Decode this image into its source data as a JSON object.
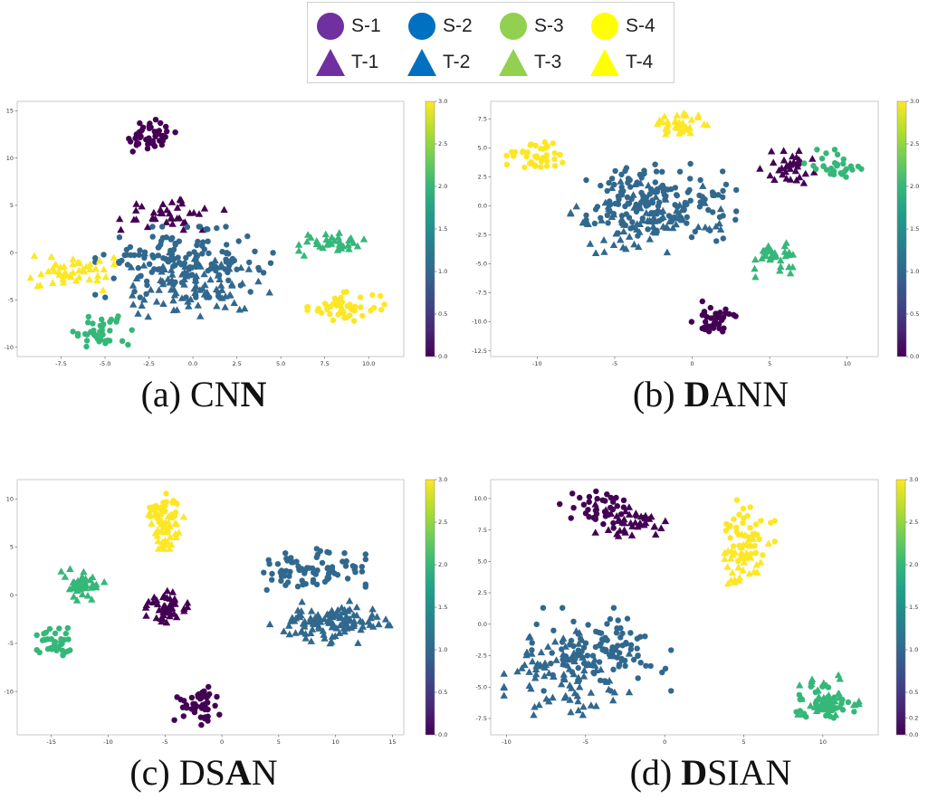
{
  "legend": {
    "entries": [
      {
        "label": "S-1",
        "shape": "circle",
        "color": "#7030a0"
      },
      {
        "label": "S-2",
        "shape": "circle",
        "color": "#0070c0"
      },
      {
        "label": "S-3",
        "shape": "circle",
        "color": "#92d050"
      },
      {
        "label": "S-4",
        "shape": "circle",
        "color": "#ffff00"
      },
      {
        "label": "T-1",
        "shape": "triangle",
        "color": "#7030a0"
      },
      {
        "label": "T-2",
        "shape": "triangle",
        "color": "#0070c0"
      },
      {
        "label": "T-3",
        "shape": "triangle",
        "color": "#92d050"
      },
      {
        "label": "T-4",
        "shape": "triangle",
        "color": "#ffff00"
      }
    ]
  },
  "palette": {
    "class_colors": [
      "#440154",
      "#31688e",
      "#35b779",
      "#fde725"
    ],
    "colorbar_stops": [
      "#440154",
      "#482878",
      "#3e4a89",
      "#31688e",
      "#26828e",
      "#1f9e89",
      "#35b779",
      "#6ece58",
      "#b5de2b",
      "#fde725"
    ]
  },
  "chart_data": [
    {
      "type": "scatter",
      "caption": {
        "pre": "(a) CN",
        "bold": "N",
        "post": ""
      },
      "xlim": [
        -10,
        12
      ],
      "ylim": [
        -11,
        16
      ],
      "xticks": [
        "-7.5",
        "-5.0",
        "-2.5",
        "0.0",
        "2.5",
        "5.0",
        "7.5",
        "10.0"
      ],
      "xtick_values": [
        -7.5,
        -5.0,
        -2.5,
        0.0,
        2.5,
        5.0,
        7.5,
        10.0
      ],
      "yticks": [
        "-10",
        "-5",
        "0",
        "5",
        "10",
        "15"
      ],
      "ytick_values": [
        -10,
        -5,
        0,
        5,
        10,
        15
      ],
      "colorbar": {
        "ticks": [
          "0.0",
          "0.5",
          "1.0",
          "1.5",
          "2.0",
          "2.5",
          "3.0"
        ],
        "range": [
          0,
          3
        ]
      },
      "clusters": [
        {
          "label": "S-1",
          "cls": 0,
          "marker": "circle",
          "cx": -2.5,
          "cy": 12.2,
          "sx": 0.8,
          "sy": 0.85,
          "n": 45
        },
        {
          "label": "T-1",
          "cls": 0,
          "marker": "triangle",
          "cx": -1.3,
          "cy": 4.4,
          "sx": 1.4,
          "sy": 0.9,
          "n": 38
        },
        {
          "label": "S-2",
          "cls": 1,
          "marker": "circle",
          "cx": -0.5,
          "cy": -1.0,
          "sx": 2.3,
          "sy": 1.7,
          "n": 150
        },
        {
          "label": "T-2",
          "cls": 1,
          "marker": "triangle",
          "cx": 0.0,
          "cy": -3.5,
          "sx": 2.0,
          "sy": 1.6,
          "n": 90
        },
        {
          "label": "S-3",
          "cls": 2,
          "marker": "circle",
          "cx": -5.3,
          "cy": -8.3,
          "sx": 0.85,
          "sy": 0.75,
          "n": 40
        },
        {
          "label": "T-3",
          "cls": 2,
          "marker": "triangle",
          "cx": 7.9,
          "cy": 1.0,
          "sx": 0.85,
          "sy": 0.6,
          "n": 38
        },
        {
          "label": "S-4",
          "cls": 3,
          "marker": "circle",
          "cx": 8.7,
          "cy": -5.7,
          "sx": 1.0,
          "sy": 0.7,
          "n": 48
        },
        {
          "label": "T-4",
          "cls": 3,
          "marker": "triangle",
          "cx": -6.9,
          "cy": -2.0,
          "sx": 1.1,
          "sy": 0.9,
          "n": 48
        }
      ]
    },
    {
      "type": "scatter",
      "caption": {
        "pre": "(b) ",
        "bold": "D",
        "post": "ANN"
      },
      "xlim": [
        -13,
        12
      ],
      "ylim": [
        -13,
        9
      ],
      "xticks": [
        "-10",
        "-5",
        "0",
        "5",
        "10"
      ],
      "xtick_values": [
        -10,
        -5,
        0,
        5,
        10
      ],
      "yticks": [
        "-12.5",
        "-10.0",
        "-7.5",
        "-5.0",
        "-2.5",
        "0.0",
        "2.5",
        "5.0",
        "7.5"
      ],
      "ytick_values": [
        -12.5,
        -10.0,
        -7.5,
        -5.0,
        -2.5,
        0.0,
        2.5,
        5.0,
        7.5
      ],
      "colorbar": {
        "ticks": [
          "0.0",
          "0.5",
          "1.0",
          "1.5",
          "2.0",
          "2.5",
          "3.0"
        ],
        "range": [
          0,
          3
        ]
      },
      "clusters": [
        {
          "label": "S-1",
          "cls": 0,
          "marker": "circle",
          "cx": 1.5,
          "cy": -9.8,
          "sx": 0.7,
          "sy": 0.8,
          "n": 40
        },
        {
          "label": "T-1",
          "cls": 0,
          "marker": "triangle",
          "cx": 6.3,
          "cy": 3.2,
          "sx": 0.9,
          "sy": 0.7,
          "n": 35
        },
        {
          "label": "S-2",
          "cls": 1,
          "marker": "circle",
          "cx": -2.0,
          "cy": 0.3,
          "sx": 2.2,
          "sy": 1.6,
          "n": 160
        },
        {
          "label": "T-2",
          "cls": 1,
          "marker": "triangle",
          "cx": -3.0,
          "cy": -1.2,
          "sx": 2.2,
          "sy": 1.5,
          "n": 80
        },
        {
          "label": "S-3",
          "cls": 2,
          "marker": "circle",
          "cx": 9.2,
          "cy": 3.3,
          "sx": 0.9,
          "sy": 0.7,
          "n": 30
        },
        {
          "label": "T-3",
          "cls": 2,
          "marker": "triangle",
          "cx": 5.2,
          "cy": -4.6,
          "sx": 0.7,
          "sy": 0.7,
          "n": 35
        },
        {
          "label": "S-4",
          "cls": 3,
          "marker": "circle",
          "cx": -10.2,
          "cy": 4.2,
          "sx": 0.9,
          "sy": 0.6,
          "n": 40
        },
        {
          "label": "T-4",
          "cls": 3,
          "marker": "triangle",
          "cx": -0.9,
          "cy": 7.0,
          "sx": 0.85,
          "sy": 0.55,
          "n": 40
        }
      ]
    },
    {
      "type": "scatter",
      "caption": {
        "pre": "(c) DS",
        "bold": "A",
        "post": "N"
      },
      "xlim": [
        -18,
        16
      ],
      "ylim": [
        -14.5,
        12
      ],
      "xticks": [
        "-15",
        "-10",
        "-5",
        "0",
        "5",
        "10",
        "15"
      ],
      "xtick_values": [
        -15,
        -10,
        -5,
        0,
        5,
        10,
        15
      ],
      "yticks": [
        "-10",
        "-5",
        "0",
        "5",
        "10"
      ],
      "ytick_values": [
        -10,
        -5,
        0,
        5,
        10
      ],
      "colorbar": {
        "ticks": [
          "0.0",
          "0.5",
          "1.0",
          "1.5",
          "2.0",
          "2.5",
          "3.0"
        ],
        "range": [
          0,
          3
        ]
      },
      "clusters": [
        {
          "label": "S-1",
          "cls": 0,
          "marker": "circle",
          "cx": -2.2,
          "cy": -11.5,
          "sx": 0.9,
          "sy": 0.9,
          "n": 45
        },
        {
          "label": "T-1",
          "cls": 0,
          "marker": "triangle",
          "cx": -5.0,
          "cy": -1.3,
          "sx": 0.9,
          "sy": 0.8,
          "n": 45
        },
        {
          "label": "S-2",
          "cls": 1,
          "marker": "circle",
          "cx": 7.8,
          "cy": 2.4,
          "sx": 2.2,
          "sy": 1.1,
          "n": 80
        },
        {
          "label": "T-2",
          "cls": 1,
          "marker": "triangle",
          "cx": 9.5,
          "cy": -2.8,
          "sx": 2.4,
          "sy": 1.0,
          "n": 120
        },
        {
          "label": "S-3",
          "cls": 2,
          "marker": "circle",
          "cx": -14.6,
          "cy": -5.2,
          "sx": 0.8,
          "sy": 0.9,
          "n": 38
        },
        {
          "label": "T-3",
          "cls": 2,
          "marker": "triangle",
          "cx": -12.5,
          "cy": 1.3,
          "sx": 1.0,
          "sy": 0.9,
          "n": 45
        },
        {
          "label": "S-4",
          "cls": 3,
          "marker": "circle",
          "cx": -5.2,
          "cy": 8.8,
          "sx": 0.7,
          "sy": 0.8,
          "n": 35
        },
        {
          "label": "T-4",
          "cls": 3,
          "marker": "triangle",
          "cx": -4.9,
          "cy": 6.8,
          "sx": 0.7,
          "sy": 0.9,
          "n": 40
        }
      ]
    },
    {
      "type": "scatter",
      "caption": {
        "pre": "(d) ",
        "bold": "D",
        "post": "SIAN"
      },
      "xlim": [
        -11,
        13.5
      ],
      "ylim": [
        -8.8,
        11.5
      ],
      "xticks": [
        "-10",
        "-5",
        "0",
        "5",
        "10"
      ],
      "xtick_values": [
        -10,
        -5,
        0,
        5,
        10
      ],
      "yticks": [
        "-7.5",
        "-5.0",
        "-2.5",
        "0.0",
        "2.5",
        "5.0",
        "7.5",
        "10.0"
      ],
      "ytick_values": [
        -7.5,
        -5.0,
        -2.5,
        0.0,
        2.5,
        5.0,
        7.5,
        10.0
      ],
      "colorbar": {
        "ticks": [
          "0.0",
          "0.2",
          "0.5",
          "1.0",
          "1.5",
          "2.0",
          "2.5",
          "3.0"
        ],
        "range": [
          0,
          3
        ]
      },
      "clusters": [
        {
          "label": "S-1",
          "cls": 0,
          "marker": "circle",
          "cx": -4.0,
          "cy": 9.1,
          "sx": 1.2,
          "sy": 0.7,
          "n": 40
        },
        {
          "label": "T-1",
          "cls": 0,
          "marker": "triangle",
          "cx": -2.2,
          "cy": 8.0,
          "sx": 1.1,
          "sy": 0.7,
          "n": 40
        },
        {
          "label": "S-2",
          "cls": 1,
          "marker": "circle",
          "cx": -4.0,
          "cy": -2.0,
          "sx": 2.0,
          "sy": 1.5,
          "n": 110
        },
        {
          "label": "T-2",
          "cls": 1,
          "marker": "triangle",
          "cx": -6.2,
          "cy": -3.7,
          "sx": 1.8,
          "sy": 1.6,
          "n": 100
        },
        {
          "label": "S-3",
          "cls": 2,
          "marker": "circle",
          "cx": 10.0,
          "cy": -6.5,
          "sx": 0.9,
          "sy": 0.7,
          "n": 45
        },
        {
          "label": "T-3",
          "cls": 2,
          "marker": "triangle",
          "cx": 10.3,
          "cy": -5.8,
          "sx": 0.9,
          "sy": 0.8,
          "n": 40
        },
        {
          "label": "S-4",
          "cls": 3,
          "marker": "circle",
          "cx": 5.2,
          "cy": 7.0,
          "sx": 0.8,
          "sy": 1.4,
          "n": 40
        },
        {
          "label": "T-4",
          "cls": 3,
          "marker": "triangle",
          "cx": 4.8,
          "cy": 5.0,
          "sx": 0.8,
          "sy": 1.0,
          "n": 40
        }
      ]
    }
  ]
}
